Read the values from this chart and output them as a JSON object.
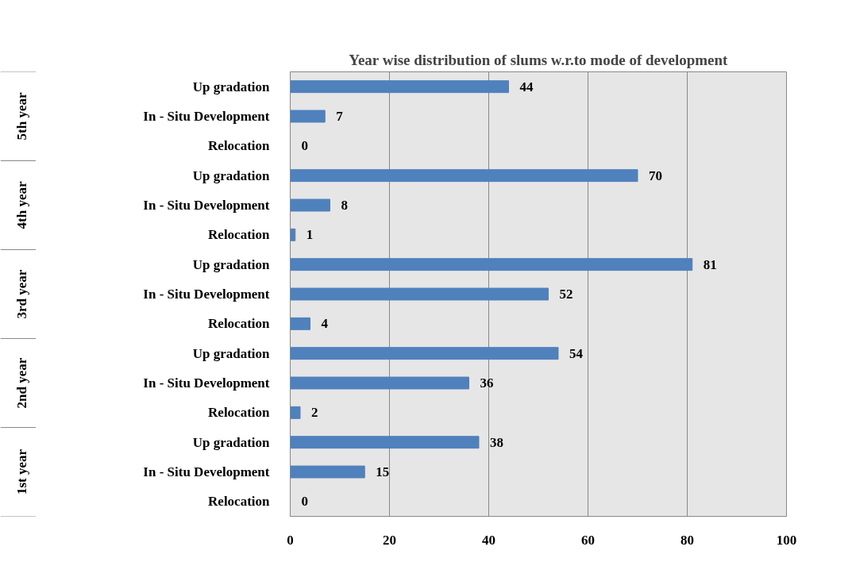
{
  "chart_data": {
    "type": "bar",
    "orientation": "horizontal",
    "title": "Year wise distribution of slums w.r.to mode of development",
    "categories": [
      "Up gradation",
      "In - Situ Development",
      "Relocation",
      "Up gradation",
      "In - Situ Development",
      "Relocation",
      "Up gradation",
      "In - Situ Development",
      "Relocation",
      "Up gradation",
      "In - Situ Development",
      "Relocation",
      "Up gradation",
      "In - Situ Development",
      "Relocation"
    ],
    "values": [
      44,
      7,
      0,
      70,
      8,
      1,
      81,
      52,
      4,
      54,
      36,
      2,
      38,
      15,
      0
    ],
    "color": "#4f81bd",
    "xlim": [
      0,
      100
    ],
    "xticks": [
      0,
      20,
      40,
      60,
      80,
      100
    ],
    "grid": "x",
    "data_labels": true,
    "annotations": [
      "5th year",
      "4th year",
      "3rd year",
      "2nd year",
      "1st year"
    ]
  }
}
